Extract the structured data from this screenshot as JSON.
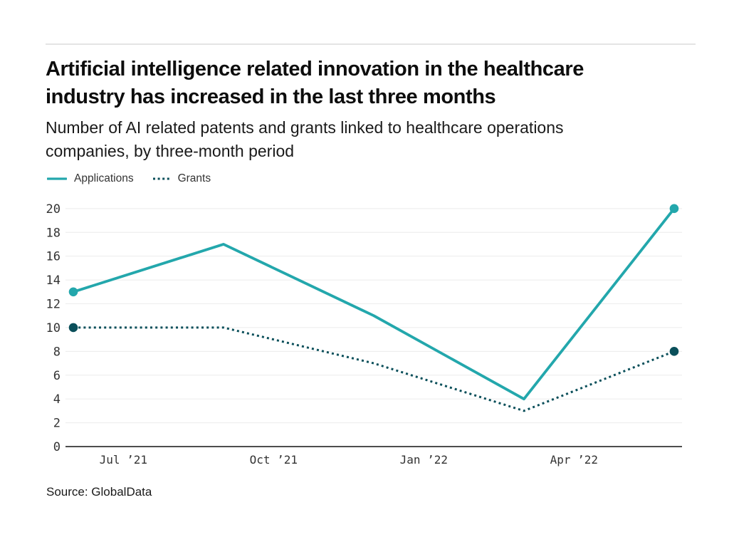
{
  "header": {
    "title_line1": "Artificial intelligence related innovation in the healthcare",
    "title_line2": "industry has increased in the last three months",
    "subtitle_line1": "Number of AI related patents and grants linked to healthcare operations",
    "subtitle_line2": "companies, by three-month period"
  },
  "legend": {
    "items": [
      {
        "label": "Applications"
      },
      {
        "label": "Grants"
      }
    ]
  },
  "chart_data": {
    "type": "line",
    "title": "Number of AI related patents and grants linked to healthcare operations companies, by three-month period",
    "x_months": [
      0,
      3,
      6,
      9,
      12
    ],
    "x_tick_labels": [
      "Jul ’21",
      "Oct ’21",
      "Jan ’22",
      "Apr ’22"
    ],
    "x_tick_months": [
      1,
      4,
      7,
      10
    ],
    "series": [
      {
        "name": "Applications",
        "style": "solid",
        "color": "#23a7ac",
        "values": [
          13,
          17,
          11,
          4,
          20
        ]
      },
      {
        "name": "Grants",
        "style": "dotted",
        "color": "#0a4f5a",
        "values": [
          10,
          10,
          7,
          3,
          8
        ]
      }
    ],
    "y_ticks": [
      0,
      2,
      4,
      6,
      8,
      10,
      12,
      14,
      16,
      18,
      20
    ],
    "ylim": [
      0,
      20
    ],
    "grid": "horizontal",
    "legend_position": "top-left",
    "markers": "endpoints-only"
  },
  "colors": {
    "applications": "#23a7ac",
    "grants": "#0a4f5a",
    "gridline": "#ececec",
    "axis": "#4d4d4d"
  },
  "source": {
    "text": "Source: GlobalData"
  }
}
